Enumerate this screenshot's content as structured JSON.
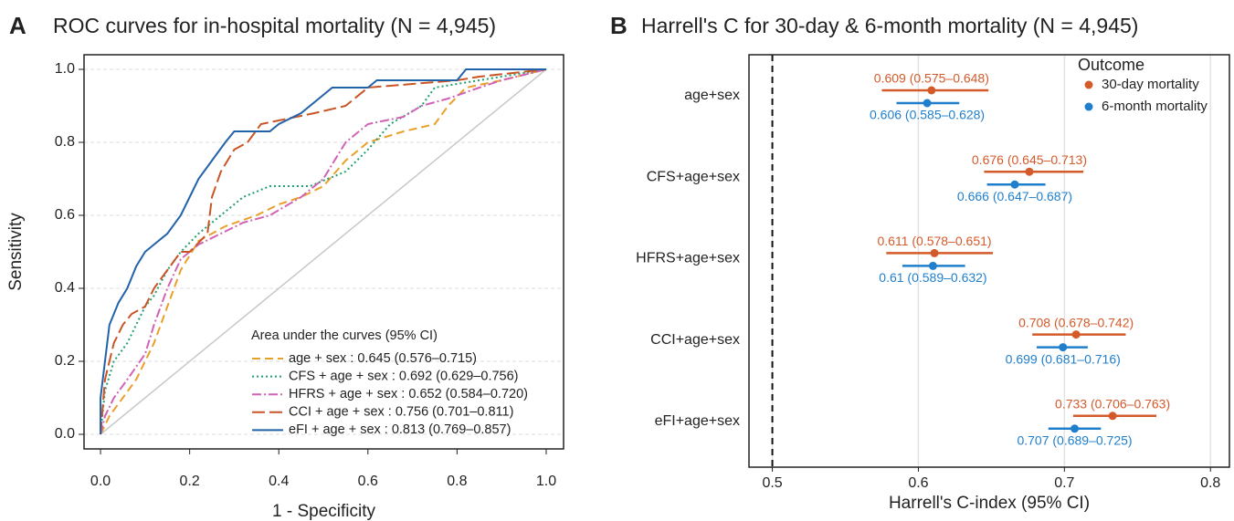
{
  "chart_data": [
    {
      "type": "roc",
      "panel": "A",
      "title": "ROC curves for in-hospital mortality (N = 4,945)",
      "xlabel": "1 - Specificity",
      "ylabel": "Sensitivity",
      "legend_title": "Area under the curves (95% CI)",
      "xlim": [
        -0.037,
        1.039
      ],
      "ylim": [
        -0.04,
        1.04
      ],
      "xticks": [
        {
          "value": 0,
          "label": "0.0"
        },
        {
          "value": 0.2,
          "label": "0.2"
        },
        {
          "value": 0.4,
          "label": "0.4"
        },
        {
          "value": 0.6,
          "label": "0.6"
        },
        {
          "value": 0.8,
          "label": "0.8"
        },
        {
          "value": 1,
          "label": "1.0"
        }
      ],
      "yticks": [
        {
          "value": 0,
          "label": "0.0"
        },
        {
          "value": 0.2,
          "label": "0.2"
        },
        {
          "value": 0.4,
          "label": "0.4"
        },
        {
          "value": 0.6,
          "label": "0.6"
        },
        {
          "value": 0.8,
          "label": "0.8"
        },
        {
          "value": 1,
          "label": "1.0"
        }
      ],
      "grid": "y",
      "diagonal": true,
      "series": [
        {
          "name": "age + sex : 0.645 (0.576–0.715)",
          "color": "#e8a02a",
          "dash": "9,5",
          "x": [
            0,
            0.02,
            0.05,
            0.08,
            0.12,
            0.15,
            0.18,
            0.22,
            0.28,
            0.35,
            0.4,
            0.45,
            0.5,
            0.55,
            0.6,
            0.68,
            0.75,
            0.78,
            0.82,
            0.9,
            1
          ],
          "values": [
            0,
            0.05,
            0.1,
            0.15,
            0.25,
            0.35,
            0.45,
            0.53,
            0.57,
            0.6,
            0.63,
            0.65,
            0.68,
            0.75,
            0.8,
            0.83,
            0.85,
            0.9,
            0.95,
            0.97,
            1
          ]
        },
        {
          "name": "CFS + age + sex : 0.692 (0.629–0.756)",
          "color": "#1f9e6e",
          "dash": "2,3",
          "x": [
            0,
            0.01,
            0.03,
            0.06,
            0.08,
            0.1,
            0.12,
            0.15,
            0.18,
            0.22,
            0.27,
            0.32,
            0.38,
            0.47,
            0.55,
            0.6,
            0.65,
            0.72,
            0.75,
            0.85,
            0.9,
            1
          ],
          "values": [
            0,
            0.12,
            0.2,
            0.25,
            0.3,
            0.35,
            0.38,
            0.45,
            0.5,
            0.55,
            0.6,
            0.65,
            0.68,
            0.68,
            0.72,
            0.78,
            0.85,
            0.9,
            0.95,
            0.97,
            0.98,
            1
          ]
        },
        {
          "name": "HFRS + age + sex : 0.652 (0.584–0.720)",
          "color": "#d063b5",
          "dash": "10,3,2,3",
          "x": [
            0,
            0.01,
            0.03,
            0.06,
            0.1,
            0.12,
            0.15,
            0.18,
            0.22,
            0.27,
            0.32,
            0.38,
            0.45,
            0.5,
            0.55,
            0.6,
            0.68,
            0.72,
            0.78,
            0.85,
            0.9,
            1
          ],
          "values": [
            0,
            0.05,
            0.1,
            0.15,
            0.22,
            0.3,
            0.4,
            0.48,
            0.52,
            0.55,
            0.58,
            0.6,
            0.65,
            0.7,
            0.8,
            0.85,
            0.87,
            0.9,
            0.92,
            0.95,
            0.97,
            1
          ]
        },
        {
          "name": "CCI + age + sex : 0.756 (0.701–0.811)",
          "color": "#c95526",
          "dash": "14,5",
          "x": [
            0,
            0.01,
            0.03,
            0.05,
            0.07,
            0.1,
            0.12,
            0.15,
            0.18,
            0.2,
            0.24,
            0.25,
            0.27,
            0.3,
            0.33,
            0.36,
            0.4,
            0.48,
            0.55,
            0.6,
            0.7,
            0.8,
            0.85,
            1
          ],
          "values": [
            0,
            0.15,
            0.25,
            0.3,
            0.33,
            0.35,
            0.4,
            0.45,
            0.5,
            0.5,
            0.55,
            0.65,
            0.72,
            0.78,
            0.8,
            0.85,
            0.86,
            0.88,
            0.9,
            0.95,
            0.96,
            0.97,
            0.98,
            1
          ]
        },
        {
          "name": "eFI + age + sex : 0.813 (0.769–0.857)",
          "color": "#2262a8",
          "dash": "",
          "x": [
            0,
            0,
            0.01,
            0.02,
            0.04,
            0.06,
            0.08,
            0.1,
            0.12,
            0.15,
            0.18,
            0.2,
            0.22,
            0.25,
            0.28,
            0.3,
            0.38,
            0.4,
            0.45,
            0.5,
            0.52,
            0.6,
            0.62,
            0.8,
            0.82,
            1
          ],
          "values": [
            0,
            0.1,
            0.2,
            0.3,
            0.36,
            0.4,
            0.46,
            0.5,
            0.52,
            0.55,
            0.6,
            0.65,
            0.7,
            0.75,
            0.8,
            0.83,
            0.83,
            0.85,
            0.88,
            0.93,
            0.95,
            0.95,
            0.97,
            0.97,
            1,
            1
          ]
        }
      ]
    },
    {
      "type": "forest",
      "panel": "B",
      "title": "Harrell's C for 30-day & 6-month mortality (N = 4,945)",
      "xlabel": "Harrell's C-index (95% CI)",
      "legend_title": "Outcome",
      "xlim": [
        0.484,
        0.813
      ],
      "xticks": [
        0.5,
        0.6,
        0.7,
        0.8
      ],
      "grid": "x",
      "refline": 0.5,
      "categories": [
        "age+sex",
        "CFS+age+sex",
        "HFRS+age+sex",
        "CCI+age+sex",
        "eFI+age+sex"
      ],
      "series": [
        {
          "name": "30-day mortality",
          "color": "#d45a2a",
          "values": [
            0.609,
            0.676,
            0.611,
            0.708,
            0.733
          ],
          "lower": [
            0.575,
            0.645,
            0.578,
            0.678,
            0.706
          ],
          "upper": [
            0.648,
            0.713,
            0.651,
            0.742,
            0.763
          ],
          "value_labels": [
            "0.609 (0.575–0.648)",
            "0.676 (0.645–0.713)",
            "0.611 (0.578–0.651)",
            "0.708 (0.678–0.742)",
            "0.733 (0.706–0.763)"
          ]
        },
        {
          "name": "6-month mortality",
          "color": "#1f7fcc",
          "values": [
            0.606,
            0.666,
            0.61,
            0.699,
            0.707
          ],
          "lower": [
            0.585,
            0.647,
            0.589,
            0.681,
            0.689
          ],
          "upper": [
            0.628,
            0.687,
            0.632,
            0.716,
            0.725
          ],
          "value_labels": [
            "0.606 (0.585–0.628)",
            "0.666 (0.647–0.687)",
            "0.61 (0.589–0.632)",
            "0.699 (0.681–0.716)",
            "0.707 (0.689–0.725)"
          ]
        }
      ]
    }
  ]
}
